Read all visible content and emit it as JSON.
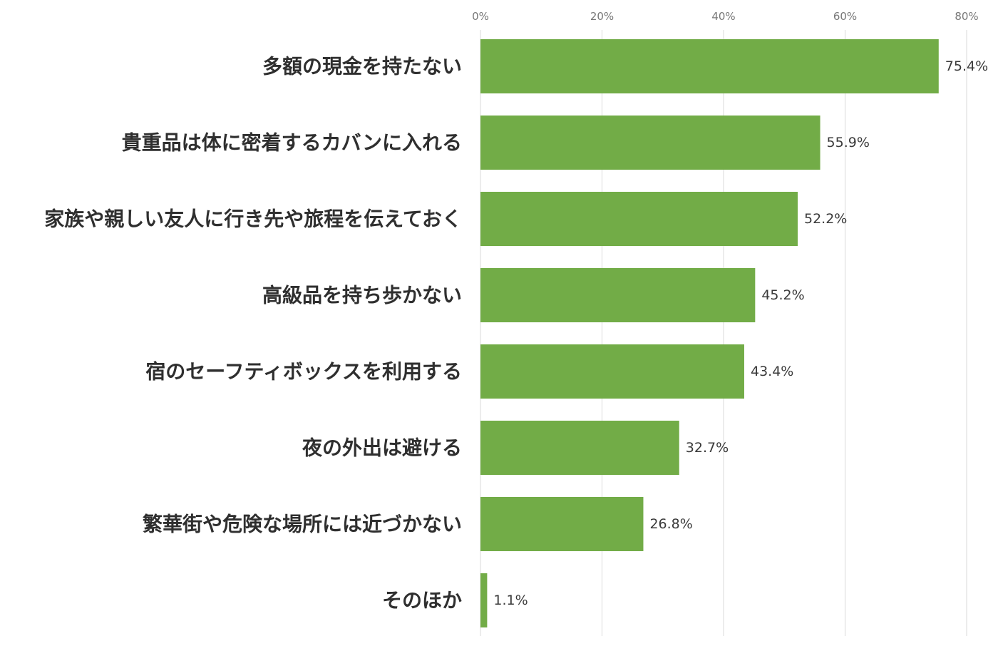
{
  "chart_data": {
    "type": "bar",
    "orientation": "horizontal",
    "categories": [
      "多額の現金を持たない",
      "貴重品は体に密着するカバンに入れる",
      "家族や親しい友人に行き先や旅程を伝えておく",
      "高級品を持ち歩かない",
      "宿のセーフティボックスを利用する",
      "夜の外出は避ける",
      "繁華街や危険な場所には近づかない",
      "そのほか"
    ],
    "values": [
      75.4,
      55.9,
      52.2,
      45.2,
      43.4,
      32.7,
      26.8,
      1.1
    ],
    "value_labels": [
      "75.4%",
      "55.9%",
      "52.2%",
      "45.2%",
      "43.4%",
      "32.7%",
      "26.8%",
      "1.1%"
    ],
    "xlim": [
      0,
      80
    ],
    "x_ticks": [
      0,
      20,
      40,
      60,
      80
    ],
    "x_tick_labels": [
      "0%",
      "20%",
      "40%",
      "60%",
      "80%"
    ],
    "x_axis_position": "top",
    "grid": true,
    "bar_color": "#72AC47",
    "title": "",
    "xlabel": "",
    "ylabel": ""
  }
}
